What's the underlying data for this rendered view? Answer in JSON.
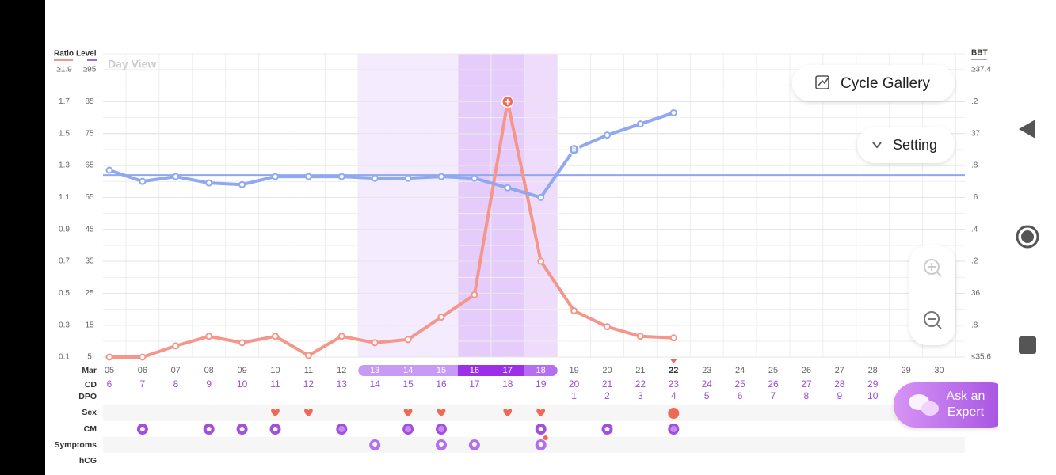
{
  "chart_data": {
    "type": "line",
    "ylabel": "Ratio",
    "level_label": "Level",
    "y2label": "BBT",
    "categories": [
      "05",
      "06",
      "07",
      "08",
      "09",
      "10",
      "11",
      "12",
      "13",
      "14",
      "15",
      "16",
      "17",
      "18",
      "19",
      "20",
      "21",
      "22",
      "23",
      "24",
      "25",
      "26",
      "27",
      "28",
      "29",
      "30"
    ],
    "month": "Mar",
    "series": [
      {
        "name": "Ratio",
        "color": "#f4978a",
        "values": [
          0.1,
          0.1,
          0.17,
          0.23,
          0.19,
          0.23,
          0.11,
          0.23,
          0.19,
          0.21,
          0.35,
          0.49,
          1.7,
          0.7,
          0.39,
          0.29,
          0.23,
          0.22,
          null,
          null,
          null,
          null,
          null,
          null,
          null,
          null
        ]
      },
      {
        "name": "BBT",
        "color": "#8fa8f0",
        "axis": "y2",
        "values": [
          36.77,
          36.7,
          36.73,
          36.69,
          36.68,
          36.73,
          36.73,
          36.73,
          36.72,
          36.72,
          36.73,
          36.72,
          36.66,
          36.6,
          36.9,
          36.99,
          37.06,
          37.13,
          null,
          null,
          null,
          null,
          null,
          null,
          null,
          null
        ]
      }
    ],
    "coverline": 36.74,
    "bbt_marker": "B",
    "ylim": [
      0.1,
      1.9
    ],
    "yticks": [
      0.1,
      0.3,
      0.5,
      0.7,
      0.9,
      1.1,
      1.3,
      1.5,
      1.7,
      {
        "value": 1.9,
        "label": "≥1.9"
      }
    ],
    "level_lim": [
      5,
      95
    ],
    "level_ticks": [
      5,
      15,
      25,
      35,
      45,
      55,
      65,
      75,
      85,
      {
        "value": 95,
        "label": "≥95"
      }
    ],
    "y2lim": [
      35.6,
      37.4
    ],
    "y2ticks": [
      {
        "value": 35.6,
        "label": "≤35.6"
      },
      {
        "value": 35.8,
        "label": ".8"
      },
      36,
      {
        "value": 36.2,
        "label": ".2"
      },
      {
        "value": 36.4,
        "label": ".4"
      },
      {
        "value": 36.6,
        "label": ".6"
      },
      {
        "value": 36.8,
        "label": ".8"
      },
      37,
      {
        "value": 37.2,
        "label": ".2"
      },
      {
        "value": 37.4,
        "label": "≥37.4"
      }
    ],
    "grid": true,
    "cd": [
      6,
      7,
      8,
      9,
      10,
      11,
      12,
      13,
      14,
      15,
      16,
      17,
      18,
      19,
      20,
      21,
      22,
      23,
      24,
      25,
      26,
      27,
      28,
      29,
      null,
      null
    ],
    "dpo": [
      null,
      null,
      null,
      null,
      null,
      null,
      null,
      null,
      null,
      null,
      null,
      null,
      null,
      null,
      1,
      2,
      3,
      4,
      5,
      6,
      7,
      8,
      9,
      10,
      null,
      null
    ]
  },
  "ui": {
    "view_label": "Day View",
    "cycle_gallery": "Cycle Gallery",
    "setting": "Setting",
    "ask_expert": [
      "Ask an",
      "Expert"
    ],
    "row_labels": {
      "cd": "CD",
      "dpo": "DPO",
      "sex": "Sex",
      "cm": "CM",
      "symptoms": "Symptoms",
      "hcg": "hCG"
    }
  }
}
